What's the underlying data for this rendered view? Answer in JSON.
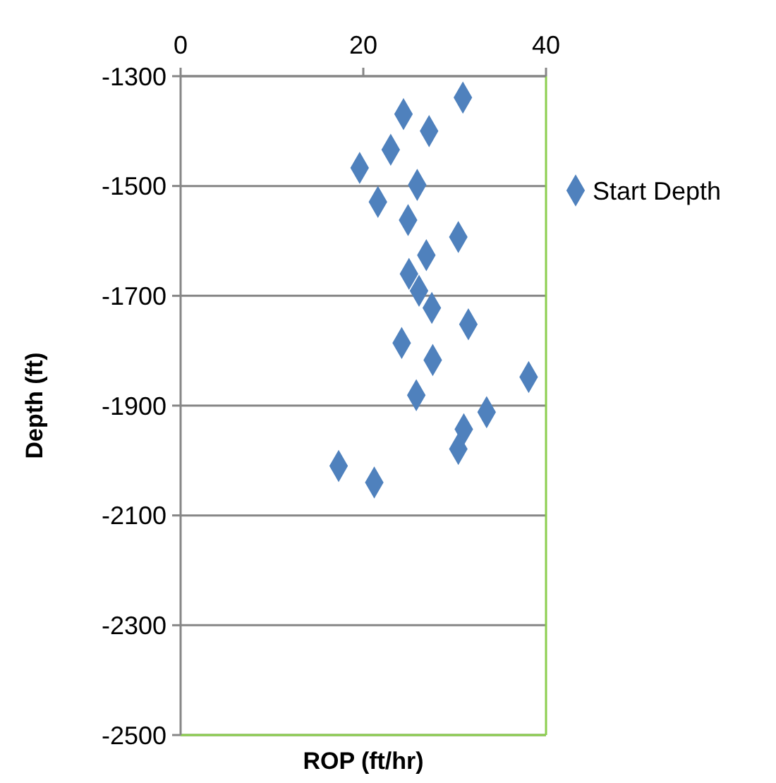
{
  "chart_data": {
    "type": "scatter",
    "xlabel": "ROP (ft/hr)",
    "ylabel": "Depth (ft)",
    "xlim": [
      0,
      40
    ],
    "xticks": [
      0,
      20,
      40
    ],
    "ylim": [
      -2500,
      -1300
    ],
    "yticks": [
      -2500,
      -2300,
      -2100,
      -1900,
      -1700,
      -1500,
      -1300
    ],
    "grid": "y",
    "legend": "right",
    "marker": "diamond",
    "series": [
      {
        "name": "Start Depth",
        "color": "#4f81bd",
        "x": [
          30.9,
          24.4,
          27.2,
          23.0,
          19.6,
          25.9,
          21.6,
          24.9,
          30.4,
          26.9,
          25.0,
          26.1,
          27.5,
          31.5,
          24.2,
          27.6,
          38.1,
          25.8,
          33.5,
          31.0,
          30.4,
          17.3,
          21.2
        ],
        "values": [
          -1339,
          -1369,
          -1400,
          -1434,
          -1467,
          -1498,
          -1529,
          -1562,
          -1593,
          -1626,
          -1660,
          -1691,
          -1722,
          -1752,
          -1786,
          -1817,
          -1848,
          -1881,
          -1912,
          -1943,
          -1979,
          -2010,
          -2040
        ]
      }
    ]
  }
}
